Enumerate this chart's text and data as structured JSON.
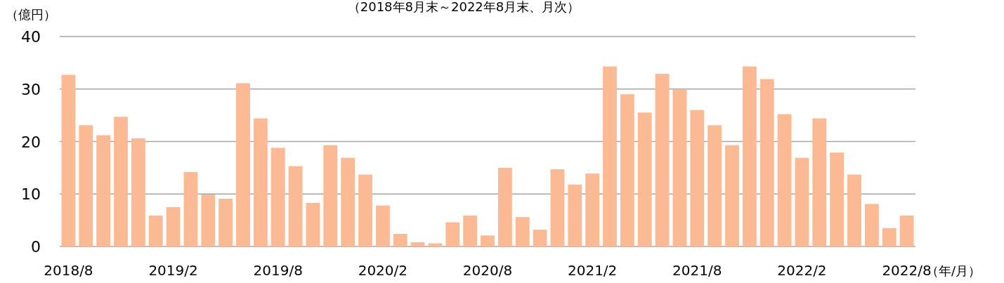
{
  "chart_data": {
    "type": "bar",
    "title": "（2018年8月末～2022年8月末、月次）",
    "ylabel": "（億円）",
    "xlabel": "（年/月）",
    "categories": [
      "2018/8",
      null,
      null,
      null,
      null,
      null,
      "2019/2",
      null,
      null,
      null,
      null,
      null,
      "2019/8",
      null,
      null,
      null,
      null,
      null,
      "2020/2",
      null,
      null,
      null,
      null,
      null,
      "2020/8",
      null,
      null,
      null,
      null,
      null,
      "2021/2",
      null,
      null,
      null,
      null,
      null,
      "2021/8",
      null,
      null,
      null,
      null,
      null,
      "2022/2",
      null,
      null,
      null,
      null,
      null,
      "2022/8"
    ],
    "values": [
      32.7,
      23.1,
      21.2,
      24.7,
      20.6,
      5.9,
      7.5,
      14.2,
      9.9,
      9.1,
      31.1,
      24.4,
      18.8,
      15.3,
      8.3,
      19.3,
      16.9,
      13.7,
      7.8,
      2.4,
      0.8,
      0.6,
      4.6,
      5.9,
      2.1,
      15.0,
      5.6,
      3.2,
      14.7,
      11.8,
      13.9,
      34.3,
      29.0,
      25.5,
      32.9,
      29.9,
      26.0,
      23.1,
      19.3,
      34.3,
      31.9,
      25.2,
      16.9,
      24.4,
      17.9,
      13.7,
      8.1,
      3.5,
      5.9
    ],
    "color": "#fbb994",
    "ylim": [
      0,
      40
    ],
    "yticks": [
      0,
      10,
      20,
      30,
      40
    ],
    "grid": "y"
  }
}
